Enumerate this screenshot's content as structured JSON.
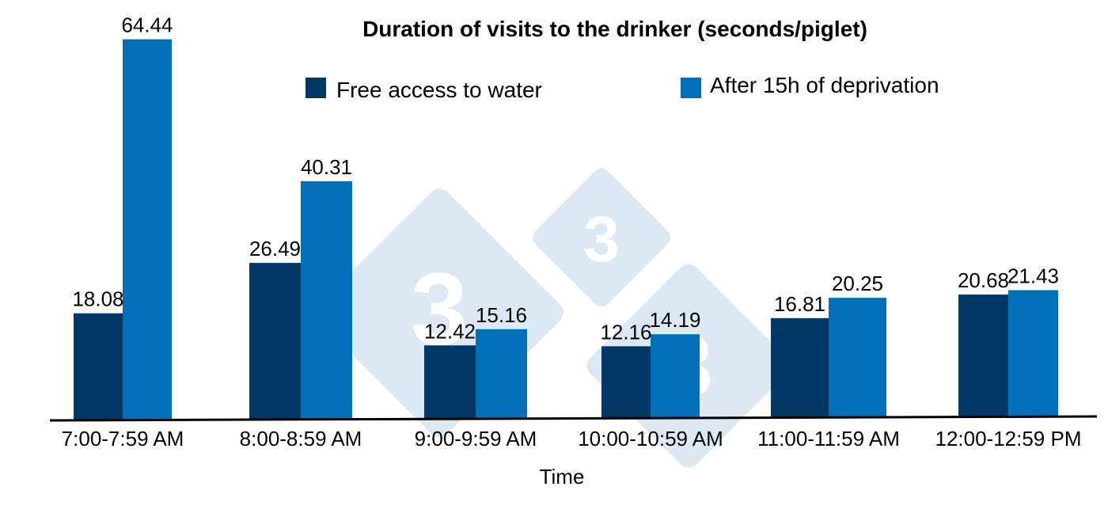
{
  "chart_data": {
    "type": "bar",
    "title": "Duration of visits to the drinker (seconds/piglet)",
    "xlabel": "Time",
    "ylabel": "",
    "ylim": [
      0,
      66
    ],
    "grid": false,
    "legend_position": "top",
    "categories": [
      "7:00-7:59 AM",
      "8:00-8:59 AM",
      "9:00-9:59 AM",
      "10:00-10:59 AM",
      "11:00-11:59 AM",
      "12:00-12:59 PM"
    ],
    "series": [
      {
        "name": "Free access to water",
        "color": "#003865",
        "values": [
          18.08,
          26.49,
          12.42,
          12.16,
          16.81,
          20.68
        ],
        "labels": [
          "18.08",
          "26.49",
          "12.42",
          "12.16",
          "16.81",
          "20.68"
        ]
      },
      {
        "name": "After 15h of deprivation",
        "color": "#0070b8",
        "values": [
          64.44,
          40.31,
          15.16,
          14.19,
          20.25,
          21.43
        ],
        "labels": [
          "64.44",
          "40.31",
          "15.16",
          "14.19",
          "20.25",
          "21.43"
        ]
      }
    ]
  },
  "watermark": {
    "type": "logo",
    "text": "3",
    "color": "#dce9f3"
  }
}
